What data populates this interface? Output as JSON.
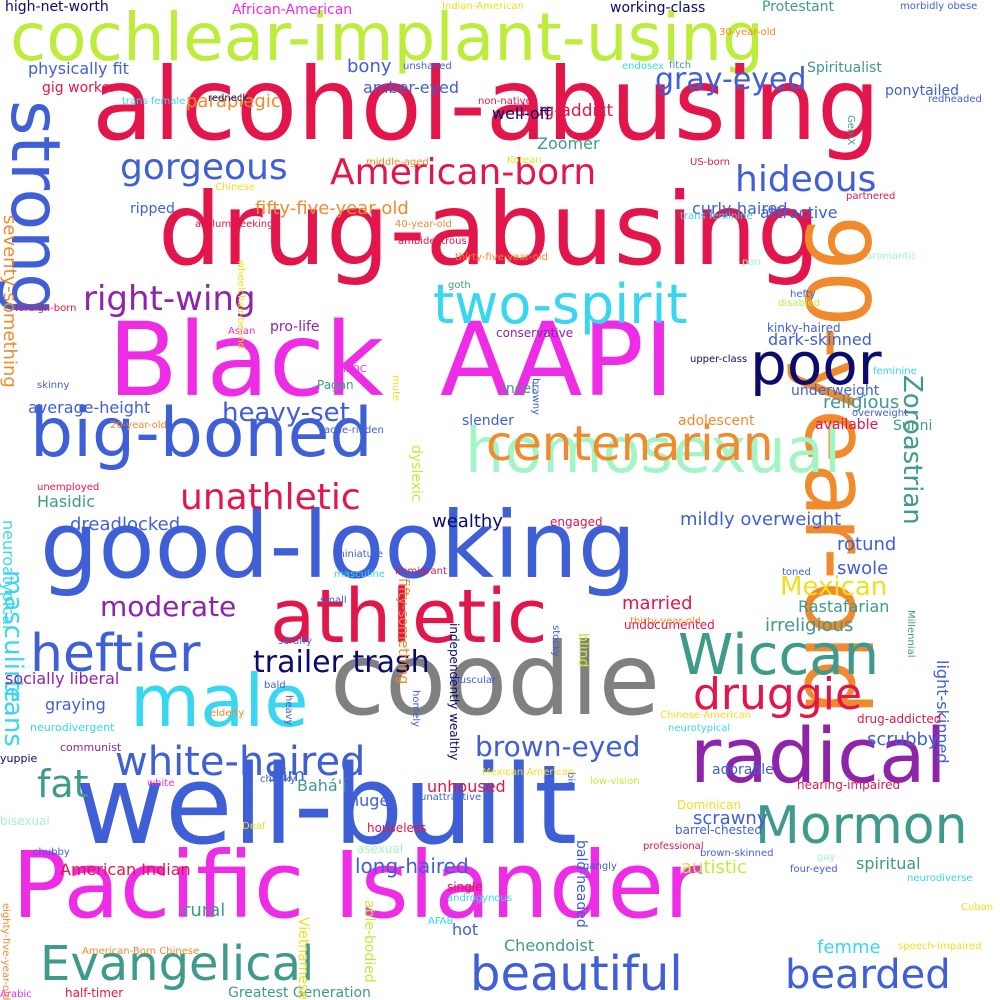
{
  "palette": {
    "red": "#e2164b",
    "blue": "#3f5fd6",
    "magenta": "#ee2ce6",
    "navy": "#0b0b6e",
    "purple": "#8e24aa",
    "teal": "#3e9a8b",
    "cyan": "#38d6f0",
    "mint": "#a3f5c6",
    "lime": "#bded3b",
    "orange": "#f08a2c",
    "gray": "#808080",
    "yellow": "#f3dd1c"
  },
  "words": [
    {
      "text": "cochlear-implant-using",
      "color": "#bded3b"
    },
    {
      "text": "alcohol-abusing",
      "color": "#e2164b"
    },
    {
      "text": "drug-abusing",
      "color": "#e2164b"
    },
    {
      "text": "Black",
      "color": "#ee2ce6"
    },
    {
      "text": "AAPI",
      "color": "#ee2ce6"
    },
    {
      "text": "good-looking",
      "color": "#3f5fd6"
    },
    {
      "text": "coodle",
      "color": "#808080"
    },
    {
      "text": "well-built",
      "color": "#3f5fd6"
    },
    {
      "text": "Pacific Islander",
      "color": "#ee2ce6"
    },
    {
      "text": "90-year-old",
      "color": "#f08a2c"
    },
    {
      "text": "strong",
      "color": "#3f5fd6"
    },
    {
      "text": "big-boned",
      "color": "#3f5fd6"
    },
    {
      "text": "homosexual",
      "color": "#a3f5c6"
    },
    {
      "text": "athletic",
      "color": "#e2164b"
    },
    {
      "text": "radical",
      "color": "#8e24aa"
    },
    {
      "text": "beautiful",
      "color": "#3f5fd6"
    },
    {
      "text": "Evangelical",
      "color": "#3e9a8b"
    },
    {
      "text": "male",
      "color": "#38d6f0"
    },
    {
      "text": "Mormon",
      "color": "#3e9a8b"
    },
    {
      "text": "Wiccan",
      "color": "#3e9a8b"
    },
    {
      "text": "two-spirit",
      "color": "#38d6f0"
    },
    {
      "text": "poor",
      "color": "#0b0b6e"
    },
    {
      "text": "centenarian",
      "color": "#f08a2c"
    },
    {
      "text": "white-haired",
      "color": "#3f5fd6"
    },
    {
      "text": "heftier",
      "color": "#3f5fd6"
    },
    {
      "text": "bearded",
      "color": "#3f5fd6"
    },
    {
      "text": "druggie",
      "color": "#e2164b"
    },
    {
      "text": "American-born",
      "color": "#e2164b"
    },
    {
      "text": "unathletic",
      "color": "#e2164b"
    },
    {
      "text": "gorgeous",
      "color": "#3f5fd6"
    },
    {
      "text": "hideous",
      "color": "#3f5fd6"
    },
    {
      "text": "right-wing",
      "color": "#8e24aa"
    },
    {
      "text": "Zoroastrian",
      "color": "#3e9a8b"
    },
    {
      "text": "gray-eyed",
      "color": "#3f5fd6"
    },
    {
      "text": "fat",
      "color": "#3e9a8b"
    },
    {
      "text": "trailer trash",
      "color": "#0b0b6e"
    },
    {
      "text": "Mexican",
      "color": "#f3dd1c"
    },
    {
      "text": "moderate",
      "color": "#8e24aa"
    },
    {
      "text": "brown-eyed",
      "color": "#3f5fd6"
    },
    {
      "text": "heavy-set",
      "color": "#3f5fd6"
    },
    {
      "text": "masculine",
      "color": "#38d6f0"
    },
    {
      "text": "trans",
      "color": "#38d6f0"
    },
    {
      "text": "married",
      "color": "#e2164b"
    },
    {
      "text": "Hasidic",
      "color": "#3e9a8b"
    },
    {
      "text": "Cheondoist",
      "color": "#3e9a8b"
    },
    {
      "text": "long-haired",
      "color": "#3f5fd6"
    },
    {
      "text": "drug-addict",
      "color": "#e2164b"
    },
    {
      "text": "paraplegic",
      "color": "#f08a2c"
    },
    {
      "text": "fifty-five-year-old",
      "color": "#f08a2c"
    },
    {
      "text": "religious",
      "color": "#3e9a8b"
    },
    {
      "text": "mildly overweight",
      "color": "#3f5fd6"
    },
    {
      "text": "rotund",
      "color": "#3f5fd6"
    },
    {
      "text": "swole",
      "color": "#3f5fd6"
    },
    {
      "text": "dreadlocked",
      "color": "#3f5fd6"
    },
    {
      "text": "wealthy",
      "color": "#0b0b6e"
    },
    {
      "text": "irreligious",
      "color": "#3e9a8b"
    },
    {
      "text": "Rastafarian",
      "color": "#3e9a8b"
    },
    {
      "text": "light-skinned",
      "color": "#3f5fd6"
    },
    {
      "text": "scrubby",
      "color": "#3f5fd6"
    },
    {
      "text": "adorable",
      "color": "#3f5fd6"
    },
    {
      "text": "scrawny",
      "color": "#3f5fd6"
    },
    {
      "text": "autistic",
      "color": "#bded3b"
    },
    {
      "text": "spiritual",
      "color": "#3e9a8b"
    },
    {
      "text": "femme",
      "color": "#38d6f0"
    },
    {
      "text": "hot",
      "color": "#3f5fd6"
    },
    {
      "text": "rural",
      "color": "#3e9a8b"
    },
    {
      "text": "huge",
      "color": "#3f5fd6"
    },
    {
      "text": "slim",
      "color": "#3f5fd6"
    },
    {
      "text": "Bahá'í",
      "color": "#3e9a8b"
    },
    {
      "text": "unhoused",
      "color": "#e2164b"
    },
    {
      "text": "American Indian",
      "color": "#e2164b"
    },
    {
      "text": "neuroatypical",
      "color": "#38d6f0"
    },
    {
      "text": "seventy-something",
      "color": "#f08a2c"
    },
    {
      "text": "socially liberal",
      "color": "#8e24aa"
    },
    {
      "text": "graying",
      "color": "#3f5fd6"
    },
    {
      "text": "average-height",
      "color": "#3f5fd6"
    },
    {
      "text": "physically fit",
      "color": "#3f5fd6"
    },
    {
      "text": "bony",
      "color": "#3f5fd6"
    },
    {
      "text": "amber-eyed",
      "color": "#3f5fd6"
    },
    {
      "text": "gig worker",
      "color": "#e2164b"
    },
    {
      "text": "ripped",
      "color": "#3f5fd6"
    },
    {
      "text": "curly-haired",
      "color": "#3f5fd6"
    },
    {
      "text": "attractive",
      "color": "#3f5fd6"
    },
    {
      "text": "well-off",
      "color": "#0b0b6e"
    },
    {
      "text": "Zoomer",
      "color": "#3e9a8b"
    },
    {
      "text": "high-net-worth",
      "color": "#0b0b6e"
    },
    {
      "text": "African-American",
      "color": "#ee2ce6"
    },
    {
      "text": "working-class",
      "color": "#0b0b6e"
    },
    {
      "text": "Protestant",
      "color": "#3e9a8b"
    },
    {
      "text": "Spiritualist",
      "color": "#3e9a8b"
    },
    {
      "text": "ponytailed",
      "color": "#3f5fd6"
    },
    {
      "text": "dark-skinned",
      "color": "#3f5fd6"
    },
    {
      "text": "kinky-haired",
      "color": "#3f5fd6"
    },
    {
      "text": "conservative",
      "color": "#8e24aa"
    },
    {
      "text": "pro-life",
      "color": "#8e24aa"
    },
    {
      "text": "Pagan",
      "color": "#3e9a8b"
    },
    {
      "text": "incel",
      "color": "#3e9a8b"
    },
    {
      "text": "underweight",
      "color": "#3f5fd6"
    },
    {
      "text": "Sunni",
      "color": "#3e9a8b"
    },
    {
      "text": "slender",
      "color": "#3f5fd6"
    },
    {
      "text": "adolescent",
      "color": "#f08a2c"
    },
    {
      "text": "available",
      "color": "#e2164b"
    },
    {
      "text": "engaged",
      "color": "#e2164b"
    },
    {
      "text": "undocumented",
      "color": "#e2164b"
    },
    {
      "text": "drug-addicted",
      "color": "#e2164b"
    },
    {
      "text": "hearing-impaired",
      "color": "#e2164b"
    },
    {
      "text": "Dominican",
      "color": "#f3dd1c"
    },
    {
      "text": "Greatest Generation",
      "color": "#3e9a8b"
    },
    {
      "text": "half-timer",
      "color": "#e2164b"
    },
    {
      "text": "Arabic",
      "color": "#ee2ce6"
    },
    {
      "text": "Vietnamese",
      "color": "#f3dd1c"
    },
    {
      "text": "able-bodied",
      "color": "#bded3b"
    },
    {
      "text": "bald-headed",
      "color": "#3f5fd6"
    },
    {
      "text": "blind",
      "color": "#bded3b"
    },
    {
      "text": "fifty-something",
      "color": "#f08a2c"
    },
    {
      "text": "dyslexic",
      "color": "#bded3b"
    },
    {
      "text": "independently wealthy",
      "color": "#0b0b6e"
    },
    {
      "text": "unemployed",
      "color": "#e2164b"
    },
    {
      "text": "neurodivergent",
      "color": "#38d6f0"
    },
    {
      "text": "communist",
      "color": "#8e24aa"
    },
    {
      "text": "yuppie",
      "color": "#0b0b6e"
    },
    {
      "text": "bisexual",
      "color": "#a3f5c6"
    },
    {
      "text": "chubby",
      "color": "#3f5fd6"
    },
    {
      "text": "eighty-five-year-old",
      "color": "#f08a2c"
    },
    {
      "text": "American-Born Chinese",
      "color": "#f08a2c"
    },
    {
      "text": "Deaf",
      "color": "#f3dd1c"
    },
    {
      "text": "chunky",
      "color": "#3f5fd6"
    },
    {
      "text": "white",
      "color": "#ee2ce6"
    },
    {
      "text": "houseless",
      "color": "#e2164b"
    },
    {
      "text": "asexual",
      "color": "#a3f5c6"
    },
    {
      "text": "single",
      "color": "#e2164b"
    },
    {
      "text": "androgynous",
      "color": "#38d6f0"
    },
    {
      "text": "AFAB",
      "color": "#38d6f0"
    },
    {
      "text": "gangly",
      "color": "#3f5fd6"
    },
    {
      "text": "professional",
      "color": "#e2164b"
    },
    {
      "text": "brown-skinned",
      "color": "#3f5fd6"
    },
    {
      "text": "gay",
      "color": "#a3f5c6"
    },
    {
      "text": "four-eyed",
      "color": "#3f5fd6"
    },
    {
      "text": "neurodiverse",
      "color": "#38d6f0"
    },
    {
      "text": "Cuban",
      "color": "#f3dd1c"
    },
    {
      "text": "speech-impaired",
      "color": "#f3dd1c"
    },
    {
      "text": "barrel-chested",
      "color": "#3f5fd6"
    },
    {
      "text": "big",
      "color": "#3f5fd6"
    },
    {
      "text": "low-vision",
      "color": "#bded3b"
    },
    {
      "text": "unattractive",
      "color": "#3f5fd6"
    },
    {
      "text": "Mexican-American",
      "color": "#f3dd1c"
    },
    {
      "text": "Chinese-American",
      "color": "#f3dd1c"
    },
    {
      "text": "neurotypical",
      "color": "#38d6f0"
    },
    {
      "text": "Millennial",
      "color": "#3e9a8b"
    },
    {
      "text": "elderly",
      "color": "#f08a2c"
    },
    {
      "text": "bald",
      "color": "#3f5fd6"
    },
    {
      "text": "scruffy",
      "color": "#3f5fd6"
    },
    {
      "text": "small",
      "color": "#3f5fd6"
    },
    {
      "text": "masculine",
      "color": "#38d6f0"
    },
    {
      "text": "miniature",
      "color": "#3f5fd6"
    },
    {
      "text": "muscular",
      "color": "#3f5fd6"
    },
    {
      "text": "homely",
      "color": "#3f5fd6"
    },
    {
      "text": "heavy",
      "color": "#3f5fd6"
    },
    {
      "text": "stocky",
      "color": "#3f5fd6"
    },
    {
      "text": "immigrant",
      "color": "#e2164b"
    },
    {
      "text": "thirty-year-old",
      "color": "#f08a2c"
    },
    {
      "text": "toned",
      "color": "#3f5fd6"
    },
    {
      "text": "acne-ridden",
      "color": "#3f5fd6"
    },
    {
      "text": "20-year-old",
      "color": "#f08a2c"
    },
    {
      "text": "skinny",
      "color": "#3f5fd6"
    },
    {
      "text": "BIPOC",
      "color": "#ee2ce6"
    },
    {
      "text": "mute",
      "color": "#f3dd1c"
    },
    {
      "text": "brawny",
      "color": "#3f5fd6"
    },
    {
      "text": "upper-class",
      "color": "#0b0b6e"
    },
    {
      "text": "feminine",
      "color": "#38d6f0"
    },
    {
      "text": "overweight",
      "color": "#3f5fd6"
    },
    {
      "text": "Asian",
      "color": "#ee2ce6"
    },
    {
      "text": "foreign-born",
      "color": "#e2164b"
    },
    {
      "text": "40-year-old",
      "color": "#f08a2c"
    },
    {
      "text": "ambidextrous",
      "color": "#e2164b"
    },
    {
      "text": "wheelchair-bound",
      "color": "#f3dd1c"
    },
    {
      "text": "asylum-seeking",
      "color": "#e2164b"
    },
    {
      "text": "Chinese",
      "color": "#f3dd1c"
    },
    {
      "text": "goth",
      "color": "#3e9a8b"
    },
    {
      "text": "thirty-five-year-old",
      "color": "#f08a2c"
    },
    {
      "text": "pan",
      "color": "#a3f5c6"
    },
    {
      "text": "hefty",
      "color": "#3f5fd6"
    },
    {
      "text": "disabled",
      "color": "#bded3b"
    },
    {
      "text": "aromantic",
      "color": "#a3f5c6"
    },
    {
      "text": "partnered",
      "color": "#e2164b"
    },
    {
      "text": "trans feminine",
      "color": "#38d6f0"
    },
    {
      "text": "US-born",
      "color": "#e2164b"
    },
    {
      "text": "Korean",
      "color": "#f3dd1c"
    },
    {
      "text": "middle-aged",
      "color": "#f08a2c"
    },
    {
      "text": "non-native",
      "color": "#e2164b"
    },
    {
      "text": "trans female",
      "color": "#38d6f0"
    },
    {
      "text": "redneck",
      "color": "#0b0b6e"
    },
    {
      "text": "unshaved",
      "color": "#3f5fd6"
    },
    {
      "text": "endosex",
      "color": "#38d6f0"
    },
    {
      "text": "fitch",
      "color": "#3e9a8b"
    },
    {
      "text": "Indian-American",
      "color": "#f3dd1c"
    },
    {
      "text": "morbidly obese",
      "color": "#3f5fd6"
    },
    {
      "text": "30-year-old",
      "color": "#f08a2c"
    },
    {
      "text": "Gen-X",
      "color": "#3e9a8b"
    },
    {
      "text": "redheaded",
      "color": "#3f5fd6"
    },
    {
      "text": "brunette",
      "color": "#3f5fd6"
    }
  ]
}
